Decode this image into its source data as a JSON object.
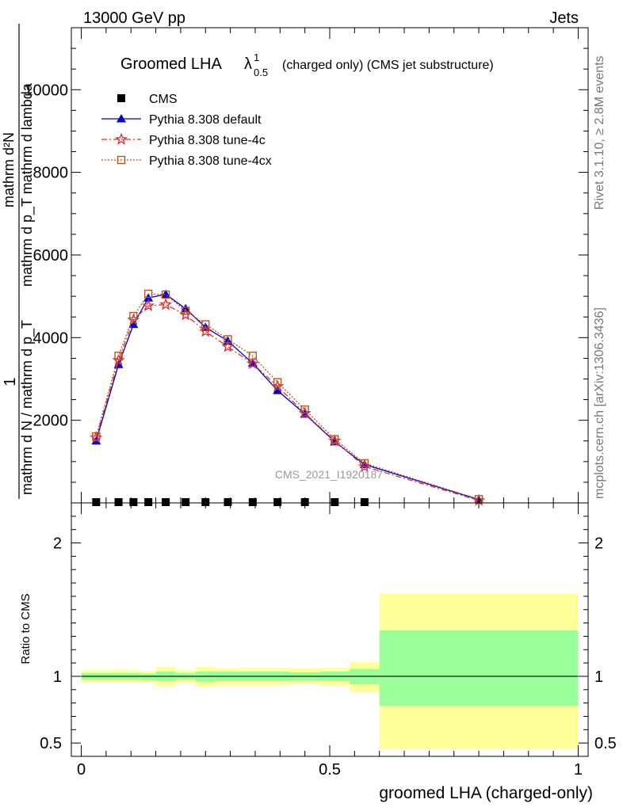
{
  "header": {
    "left": "13000 GeV pp",
    "right": "Jets"
  },
  "side_labels": {
    "rivet": "Rivet 3.1.10, ≥ 2.8M events",
    "mcplots": "mcplots.cern.ch [arXiv:1306.3436]"
  },
  "watermark": "CMS_2021_I1920187",
  "chart_data": [
    {
      "type": "line",
      "title_main": "Groomed LHA",
      "title_lambda": "λ",
      "title_sup": "1",
      "title_sub": "0.5",
      "title_rest": "(charged only) (CMS jet substructure)",
      "ylabel_numerator": "mathrm d²N",
      "ylabel_numerator_sub": "mathrm d p_T mathrm d lambda",
      "ylabel_denominator": "mathrm d N / mathrm d p_T",
      "ylabel_one": "1",
      "xlim": [
        -0.02,
        1.02
      ],
      "ylim": [
        0,
        11500
      ],
      "yticks": [
        {
          "v": 2000,
          "label": "2000"
        },
        {
          "v": 4000,
          "label": "4000"
        },
        {
          "v": 6000,
          "label": "6000"
        },
        {
          "v": 8000,
          "label": "8000"
        },
        {
          "v": 10000,
          "label": "10000"
        }
      ],
      "x": [
        0.03,
        0.075,
        0.105,
        0.135,
        0.17,
        0.21,
        0.25,
        0.295,
        0.345,
        0.395,
        0.45,
        0.51,
        0.57,
        0.8
      ],
      "series": [
        {
          "name": "CMS",
          "color": "#000000",
          "marker": "square",
          "values": [
            0,
            0,
            0,
            0,
            0,
            0,
            0,
            0,
            0,
            0,
            0,
            0,
            0,
            null
          ]
        },
        {
          "name": "Pythia 8.308 default",
          "color": "#0000cc",
          "marker": "triangle",
          "dash": "",
          "values": [
            1500,
            3350,
            4320,
            4960,
            5050,
            4700,
            4250,
            3920,
            3380,
            2720,
            2150,
            1480,
            930,
            80
          ]
        },
        {
          "name": "Pythia 8.308 tune-4c",
          "color": "#dd3333",
          "marker": "star",
          "dash": "7,3,2,3",
          "values": [
            1580,
            3450,
            4430,
            4770,
            4800,
            4550,
            4150,
            3780,
            3370,
            2820,
            2170,
            1500,
            880,
            60
          ]
        },
        {
          "name": "Pythia 8.308 tune-4cx",
          "color": "#bb5522",
          "marker": "open-square",
          "dash": "2,2",
          "values": [
            1610,
            3560,
            4520,
            5060,
            5040,
            4650,
            4320,
            3960,
            3560,
            2920,
            2260,
            1540,
            960,
            90
          ]
        }
      ]
    },
    {
      "type": "area",
      "ylabel": "Ratio to CMS",
      "xlabel": "groomed LHA (charged-only)",
      "xlim": [
        -0.02,
        1.02
      ],
      "ylim": [
        0.4,
        2.3
      ],
      "xticks": [
        {
          "v": 0,
          "label": "0"
        },
        {
          "v": 0.5,
          "label": "0.5"
        },
        {
          "v": 1,
          "label": "1"
        }
      ],
      "yticks": [
        {
          "v": 0.5,
          "label": "0.5"
        },
        {
          "v": 1,
          "label": "1"
        },
        {
          "v": 2,
          "label": "2"
        }
      ],
      "bins": [
        {
          "lo": 0.0,
          "hi": 0.06,
          "outer": [
            0.955,
            1.045
          ],
          "inner": [
            0.975,
            1.025
          ]
        },
        {
          "lo": 0.06,
          "hi": 0.09,
          "outer": [
            0.955,
            1.05
          ],
          "inner": [
            0.975,
            1.025
          ]
        },
        {
          "lo": 0.09,
          "hi": 0.12,
          "outer": [
            0.955,
            1.045
          ],
          "inner": [
            0.975,
            1.025
          ]
        },
        {
          "lo": 0.12,
          "hi": 0.15,
          "outer": [
            0.95,
            1.04
          ],
          "inner": [
            0.972,
            1.02
          ]
        },
        {
          "lo": 0.15,
          "hi": 0.19,
          "outer": [
            0.925,
            1.07
          ],
          "inner": [
            0.965,
            1.035
          ]
        },
        {
          "lo": 0.19,
          "hi": 0.23,
          "outer": [
            0.95,
            1.045
          ],
          "inner": [
            0.975,
            1.025
          ]
        },
        {
          "lo": 0.23,
          "hi": 0.27,
          "outer": [
            0.92,
            1.07
          ],
          "inner": [
            0.96,
            1.035
          ]
        },
        {
          "lo": 0.27,
          "hi": 0.32,
          "outer": [
            0.935,
            1.06
          ],
          "inner": [
            0.965,
            1.035
          ]
        },
        {
          "lo": 0.32,
          "hi": 0.37,
          "outer": [
            0.935,
            1.065
          ],
          "inner": [
            0.965,
            1.035
          ]
        },
        {
          "lo": 0.37,
          "hi": 0.42,
          "outer": [
            0.935,
            1.065
          ],
          "inner": [
            0.965,
            1.035
          ]
        },
        {
          "lo": 0.42,
          "hi": 0.48,
          "outer": [
            0.94,
            1.06
          ],
          "inner": [
            0.97,
            1.03
          ]
        },
        {
          "lo": 0.48,
          "hi": 0.54,
          "outer": [
            0.93,
            1.065
          ],
          "inner": [
            0.965,
            1.035
          ]
        },
        {
          "lo": 0.54,
          "hi": 0.6,
          "outer": [
            0.88,
            1.105
          ],
          "inner": [
            0.94,
            1.055
          ]
        },
        {
          "lo": 0.6,
          "hi": 1.0,
          "outer": [
            0.46,
            1.62
          ],
          "inner": [
            0.78,
            1.345
          ]
        }
      ],
      "band_colors": {
        "outer": "#ffff99",
        "inner": "#99ff99"
      },
      "reference_line": 1
    }
  ]
}
